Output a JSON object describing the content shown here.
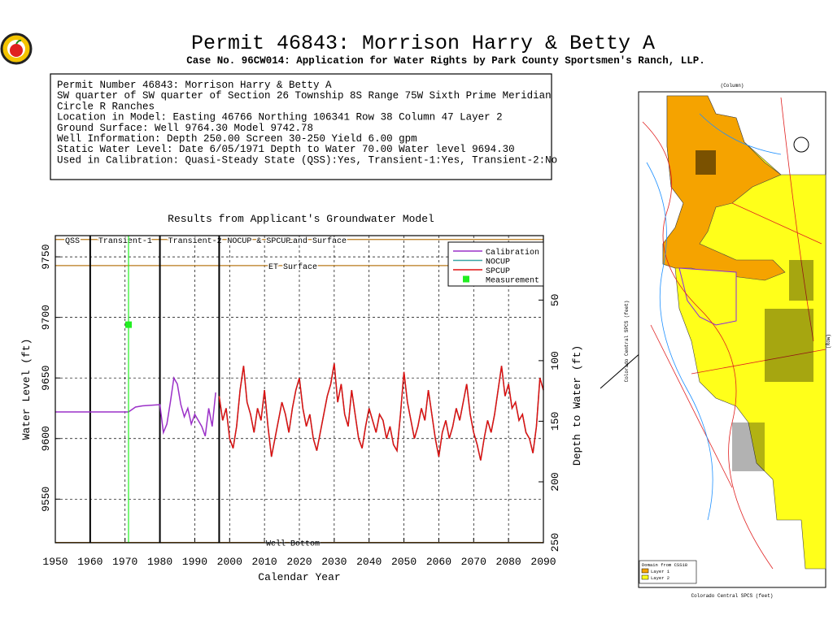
{
  "header": {
    "title": "Permit 46843:  Morrison Harry & Betty A",
    "subtitle": "Case No. 96CW014: Application for Water Rights by Park County Sportsmen's Ranch, LLP."
  },
  "info": [
    "Permit Number 46843: Morrison Harry & Betty A",
    "SW quarter of SW quarter of Section 26 Township 8S Range 75W Sixth Prime Meridian",
    "Circle R Ranches",
    "Location in Model: Easting 46766 Northing 106341 Row   38 Column 47 Layer 2",
    "Ground Surface: Well  9764.30 Model  9742.78",
    "Well Information: Depth   250.00 Screen 30-250 Yield     6.00 gpm",
    "Static Water Level: Date  6/05/1971 Depth to Water    70.00 Water level  9694.30",
    "Used in Calibration: Quasi-Steady State (QSS):Yes, Transient-1:Yes, Transient-2:No"
  ],
  "chart_data": {
    "type": "line",
    "title": "Results from Applicant's Groundwater Model",
    "x_label": "Calendar Year",
    "y_label": "Water Level (ft)",
    "y2_label": "Depth to Water (ft)",
    "xlim": [
      1950,
      2090
    ],
    "xticks": [
      1950,
      1960,
      1970,
      1980,
      1990,
      2000,
      2010,
      2020,
      2030,
      2040,
      2050,
      2060,
      2070,
      2080,
      2090
    ],
    "ylim": [
      9514,
      9767.5
    ],
    "yticks": [
      9550,
      9600,
      9650,
      9700,
      9750
    ],
    "y2lim": [
      250.3,
      -3.2
    ],
    "y2ticks": [
      50,
      100,
      150,
      200,
      250
    ],
    "grid": true,
    "legend": "top-right",
    "periods": [
      {
        "label": "QSS",
        "start": 1950
      },
      {
        "label": "Transient-1",
        "start": 1960
      },
      {
        "label": "Transient-2",
        "start": 1980
      },
      {
        "label": "NOCUP & SPCUP",
        "start": 1997
      }
    ],
    "reference_lines": [
      {
        "label": "Land Surface",
        "value": 9764.3
      },
      {
        "label": "ET Surface",
        "value": 9742.78
      },
      {
        "label": "Well Bottom",
        "value": 9514.3
      }
    ],
    "series": [
      {
        "name": "Calibration",
        "color": "#9b30c8",
        "x": [
          1950,
          1971,
          1973,
          1975,
          1980,
          1981,
          1982,
          1983,
          1984,
          1985,
          1986,
          1987,
          1988,
          1989,
          1990,
          1991,
          1992,
          1993,
          1994,
          1995,
          1996
        ],
        "values": [
          9622,
          9622,
          9626,
          9627,
          9628,
          9605,
          9612,
          9630,
          9650,
          9645,
          9628,
          9618,
          9625,
          9612,
          9620,
          9615,
          9610,
          9602,
          9625,
          9610,
          9638
        ]
      },
      {
        "name": "NOCUP",
        "color": "#3aa6a6",
        "x": [
          1997,
          1998,
          1999,
          2000,
          2001,
          2002,
          2003,
          2004,
          2005,
          2006,
          2007,
          2008,
          2009,
          2010,
          2011,
          2012,
          2013,
          2014,
          2015,
          2016,
          2017,
          2018,
          2019,
          2020,
          2021,
          2022,
          2023,
          2024,
          2025,
          2026,
          2027,
          2028,
          2029,
          2030,
          2031,
          2032,
          2033,
          2034,
          2035,
          2036,
          2037,
          2038,
          2039,
          2040,
          2041,
          2042,
          2043,
          2044,
          2045,
          2046,
          2047,
          2048,
          2049,
          2050,
          2051,
          2052,
          2053,
          2054,
          2055,
          2056,
          2057,
          2058,
          2059,
          2060,
          2061,
          2062,
          2063,
          2064,
          2065,
          2066,
          2067,
          2068,
          2069,
          2070,
          2071,
          2072,
          2073,
          2074,
          2075,
          2076,
          2077,
          2078,
          2079,
          2080,
          2081,
          2082,
          2083,
          2084,
          2085,
          2086,
          2087,
          2088,
          2089,
          2090
        ],
        "values": [
          9635,
          9615,
          9625,
          9600,
          9592,
          9610,
          9640,
          9660,
          9630,
          9620,
          9605,
          9625,
          9615,
          9640,
          9610,
          9585,
          9600,
          9615,
          9630,
          9620,
          9605,
          9625,
          9640,
          9650,
          9625,
          9610,
          9620,
          9600,
          9590,
          9605,
          9620,
          9635,
          9645,
          9662,
          9630,
          9645,
          9620,
          9610,
          9640,
          9620,
          9600,
          9592,
          9610,
          9625,
          9615,
          9605,
          9620,
          9615,
          9600,
          9610,
          9595,
          9590,
          9620,
          9655,
          9630,
          9615,
          9600,
          9610,
          9625,
          9615,
          9640,
          9620,
          9600,
          9585,
          9605,
          9615,
          9600,
          9610,
          9625,
          9615,
          9630,
          9645,
          9620,
          9605,
          9595,
          9582,
          9600,
          9615,
          9605,
          9620,
          9640,
          9660,
          9635,
          9645,
          9625,
          9630,
          9615,
          9620,
          9605,
          9600,
          9588,
          9610,
          9650,
          9640
        ]
      },
      {
        "name": "SPCUP",
        "color": "#e01010",
        "x": [
          1997,
          1998,
          1999,
          2000,
          2001,
          2002,
          2003,
          2004,
          2005,
          2006,
          2007,
          2008,
          2009,
          2010,
          2011,
          2012,
          2013,
          2014,
          2015,
          2016,
          2017,
          2018,
          2019,
          2020,
          2021,
          2022,
          2023,
          2024,
          2025,
          2026,
          2027,
          2028,
          2029,
          2030,
          2031,
          2032,
          2033,
          2034,
          2035,
          2036,
          2037,
          2038,
          2039,
          2040,
          2041,
          2042,
          2043,
          2044,
          2045,
          2046,
          2047,
          2048,
          2049,
          2050,
          2051,
          2052,
          2053,
          2054,
          2055,
          2056,
          2057,
          2058,
          2059,
          2060,
          2061,
          2062,
          2063,
          2064,
          2065,
          2066,
          2067,
          2068,
          2069,
          2070,
          2071,
          2072,
          2073,
          2074,
          2075,
          2076,
          2077,
          2078,
          2079,
          2080,
          2081,
          2082,
          2083,
          2084,
          2085,
          2086,
          2087,
          2088,
          2089,
          2090
        ],
        "values": [
          9635,
          9615,
          9625,
          9600,
          9592,
          9610,
          9640,
          9660,
          9630,
          9620,
          9605,
          9625,
          9615,
          9640,
          9610,
          9585,
          9600,
          9615,
          9630,
          9620,
          9605,
          9625,
          9640,
          9650,
          9625,
          9610,
          9620,
          9600,
          9590,
          9605,
          9620,
          9635,
          9645,
          9662,
          9630,
          9645,
          9620,
          9610,
          9640,
          9620,
          9600,
          9592,
          9610,
          9625,
          9615,
          9605,
          9620,
          9615,
          9600,
          9610,
          9595,
          9590,
          9620,
          9655,
          9630,
          9615,
          9600,
          9610,
          9625,
          9615,
          9640,
          9620,
          9600,
          9585,
          9605,
          9615,
          9600,
          9610,
          9625,
          9615,
          9630,
          9645,
          9620,
          9605,
          9595,
          9582,
          9600,
          9615,
          9605,
          9620,
          9640,
          9660,
          9635,
          9645,
          9625,
          9630,
          9615,
          9620,
          9605,
          9600,
          9588,
          9610,
          9650,
          9640
        ]
      },
      {
        "name": "Measurement",
        "color": "#22ee22",
        "marker": "square",
        "x": [
          1971
        ],
        "values": [
          9694
        ]
      }
    ]
  },
  "map": {
    "top_label": "(Column)",
    "left_label": "Colorado Central SPCS (feet)",
    "right_label": "(Row)",
    "bottom_label": "Colorado Central SPCS (feet)",
    "legend_title": "Domain from CSS18",
    "legend_items": [
      "Layer 1",
      "Layer 2"
    ]
  }
}
